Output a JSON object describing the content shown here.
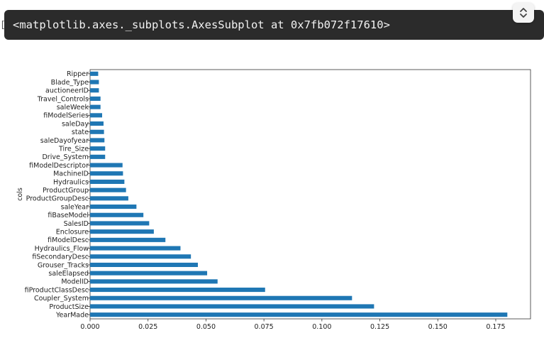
{
  "output": {
    "marker": "[",
    "text": "<matplotlib.axes._subplots.AxesSubplot at 0x7fb072f17610>",
    "collapse_icon": "chevron-up-down-icon"
  },
  "colors": {
    "bar": "#1f77b4",
    "output_bg": "#2b2b2b"
  },
  "chart_data": {
    "type": "bar",
    "orientation": "horizontal",
    "title": "",
    "xlabel": "",
    "ylabel": "cols",
    "xlim": [
      0,
      0.19
    ],
    "xticks": [
      0.0,
      0.025,
      0.05,
      0.075,
      0.1,
      0.125,
      0.15,
      0.175
    ],
    "xtick_labels": [
      "0.000",
      "0.025",
      "0.050",
      "0.075",
      "0.100",
      "0.125",
      "0.150",
      "0.175"
    ],
    "categories": [
      "YearMade",
      "ProductSize",
      "Coupler_System",
      "fiProductClassDesc",
      "ModelID",
      "saleElapsed",
      "Grouser_Tracks",
      "fiSecondaryDesc",
      "Hydraulics_Flow",
      "fiModelDesc",
      "Enclosure",
      "SalesID",
      "fiBaseModel",
      "saleYear",
      "ProductGroupDesc",
      "ProductGroup",
      "Hydraulics",
      "MachineID",
      "fiModelDescriptor",
      "Drive_System",
      "Tire_Size",
      "saleDayofyear",
      "state",
      "saleDay",
      "fiModelSeries",
      "saleWeek",
      "Travel_Controls",
      "auctioneerID",
      "Blade_Type",
      "Ripper"
    ],
    "values": [
      0.18,
      0.1225,
      0.113,
      0.0755,
      0.055,
      0.0505,
      0.0465,
      0.0435,
      0.039,
      0.0325,
      0.0275,
      0.0255,
      0.023,
      0.02,
      0.0165,
      0.0155,
      0.0148,
      0.0142,
      0.014,
      0.0065,
      0.0065,
      0.0062,
      0.006,
      0.0058,
      0.0052,
      0.0045,
      0.0045,
      0.0038,
      0.0038,
      0.0035
    ],
    "grid": false,
    "legend": "none"
  }
}
